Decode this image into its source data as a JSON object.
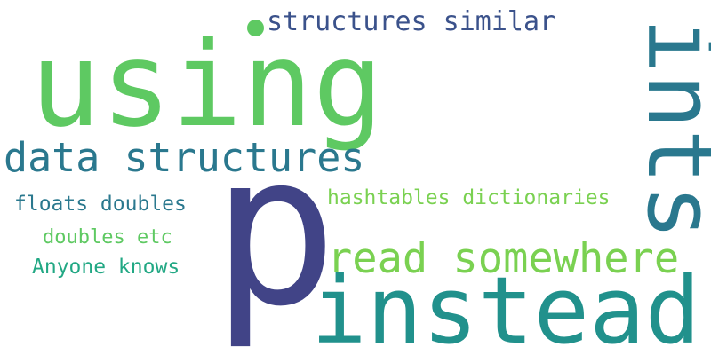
{
  "words": {
    "using": {
      "text": "using",
      "color": "#5ec962"
    },
    "p": {
      "text": "p",
      "color": "#414487"
    },
    "instead": {
      "text": "instead",
      "color": "#21918c"
    },
    "ints": {
      "text": "ints",
      "color": "#2a788e"
    },
    "data_structures": {
      "text": "data structures",
      "color": "#2a788e"
    },
    "read_somewhere": {
      "text": "read somewhere",
      "color": "#7ad151"
    },
    "structures_similar": {
      "text": "structures similar",
      "color": "#3b528b"
    },
    "hashtables_dictionaries": {
      "text": "hashtables dictionaries",
      "color": "#7ad151"
    },
    "floats_doubles": {
      "text": "floats doubles",
      "color": "#2a788e"
    },
    "doubles_etc": {
      "text": "doubles etc",
      "color": "#5ec962"
    },
    "anyone_knows": {
      "text": "Anyone knows",
      "color": "#22a884"
    }
  },
  "dot_color": "#5ec962"
}
